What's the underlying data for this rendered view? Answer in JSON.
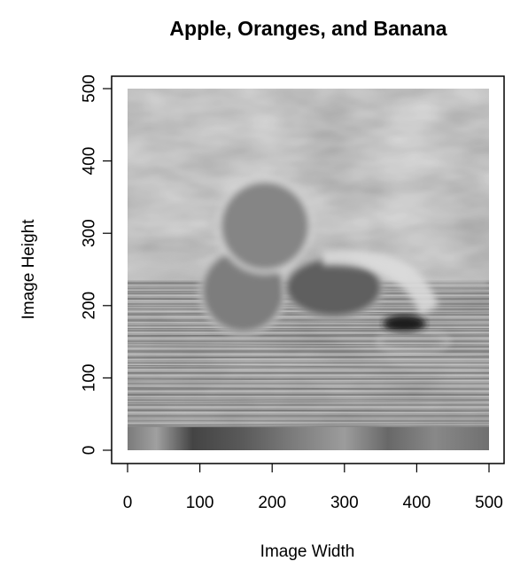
{
  "chart_data": {
    "type": "heatmap",
    "title": "Apple, Oranges, and Banana",
    "xlabel": "Image Width",
    "ylabel": "Image Height",
    "xlim": [
      0,
      500
    ],
    "ylim": [
      0,
      500
    ],
    "x_ticks": [
      0,
      100,
      200,
      300,
      400,
      500
    ],
    "y_ticks": [
      0,
      100,
      200,
      300,
      400,
      500
    ],
    "colormap": "grayscale",
    "grid": false,
    "legend": "none"
  }
}
